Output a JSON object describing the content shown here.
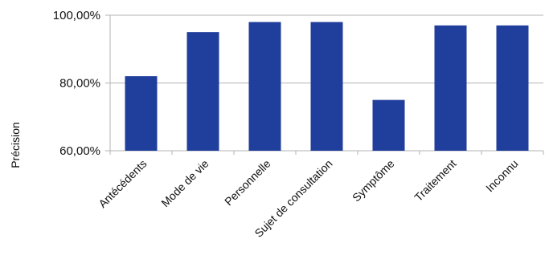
{
  "chart_data": {
    "type": "bar",
    "categories": [
      "Antécédents",
      "Mode de vie",
      "Personnelle",
      "Sujet de consultation",
      "Symptôme",
      "Traitement",
      "Inconnu"
    ],
    "values": [
      82,
      95,
      98,
      98,
      75,
      97,
      97
    ],
    "ylabel": "Précision",
    "yticks": [
      "60,00%",
      "80,00%",
      "100,00%"
    ],
    "ytick_values": [
      60,
      80,
      100
    ],
    "ylim": [
      60,
      100
    ],
    "grid": true,
    "bar_color": "#203e9b",
    "grid_color": "#b3b3b3"
  }
}
